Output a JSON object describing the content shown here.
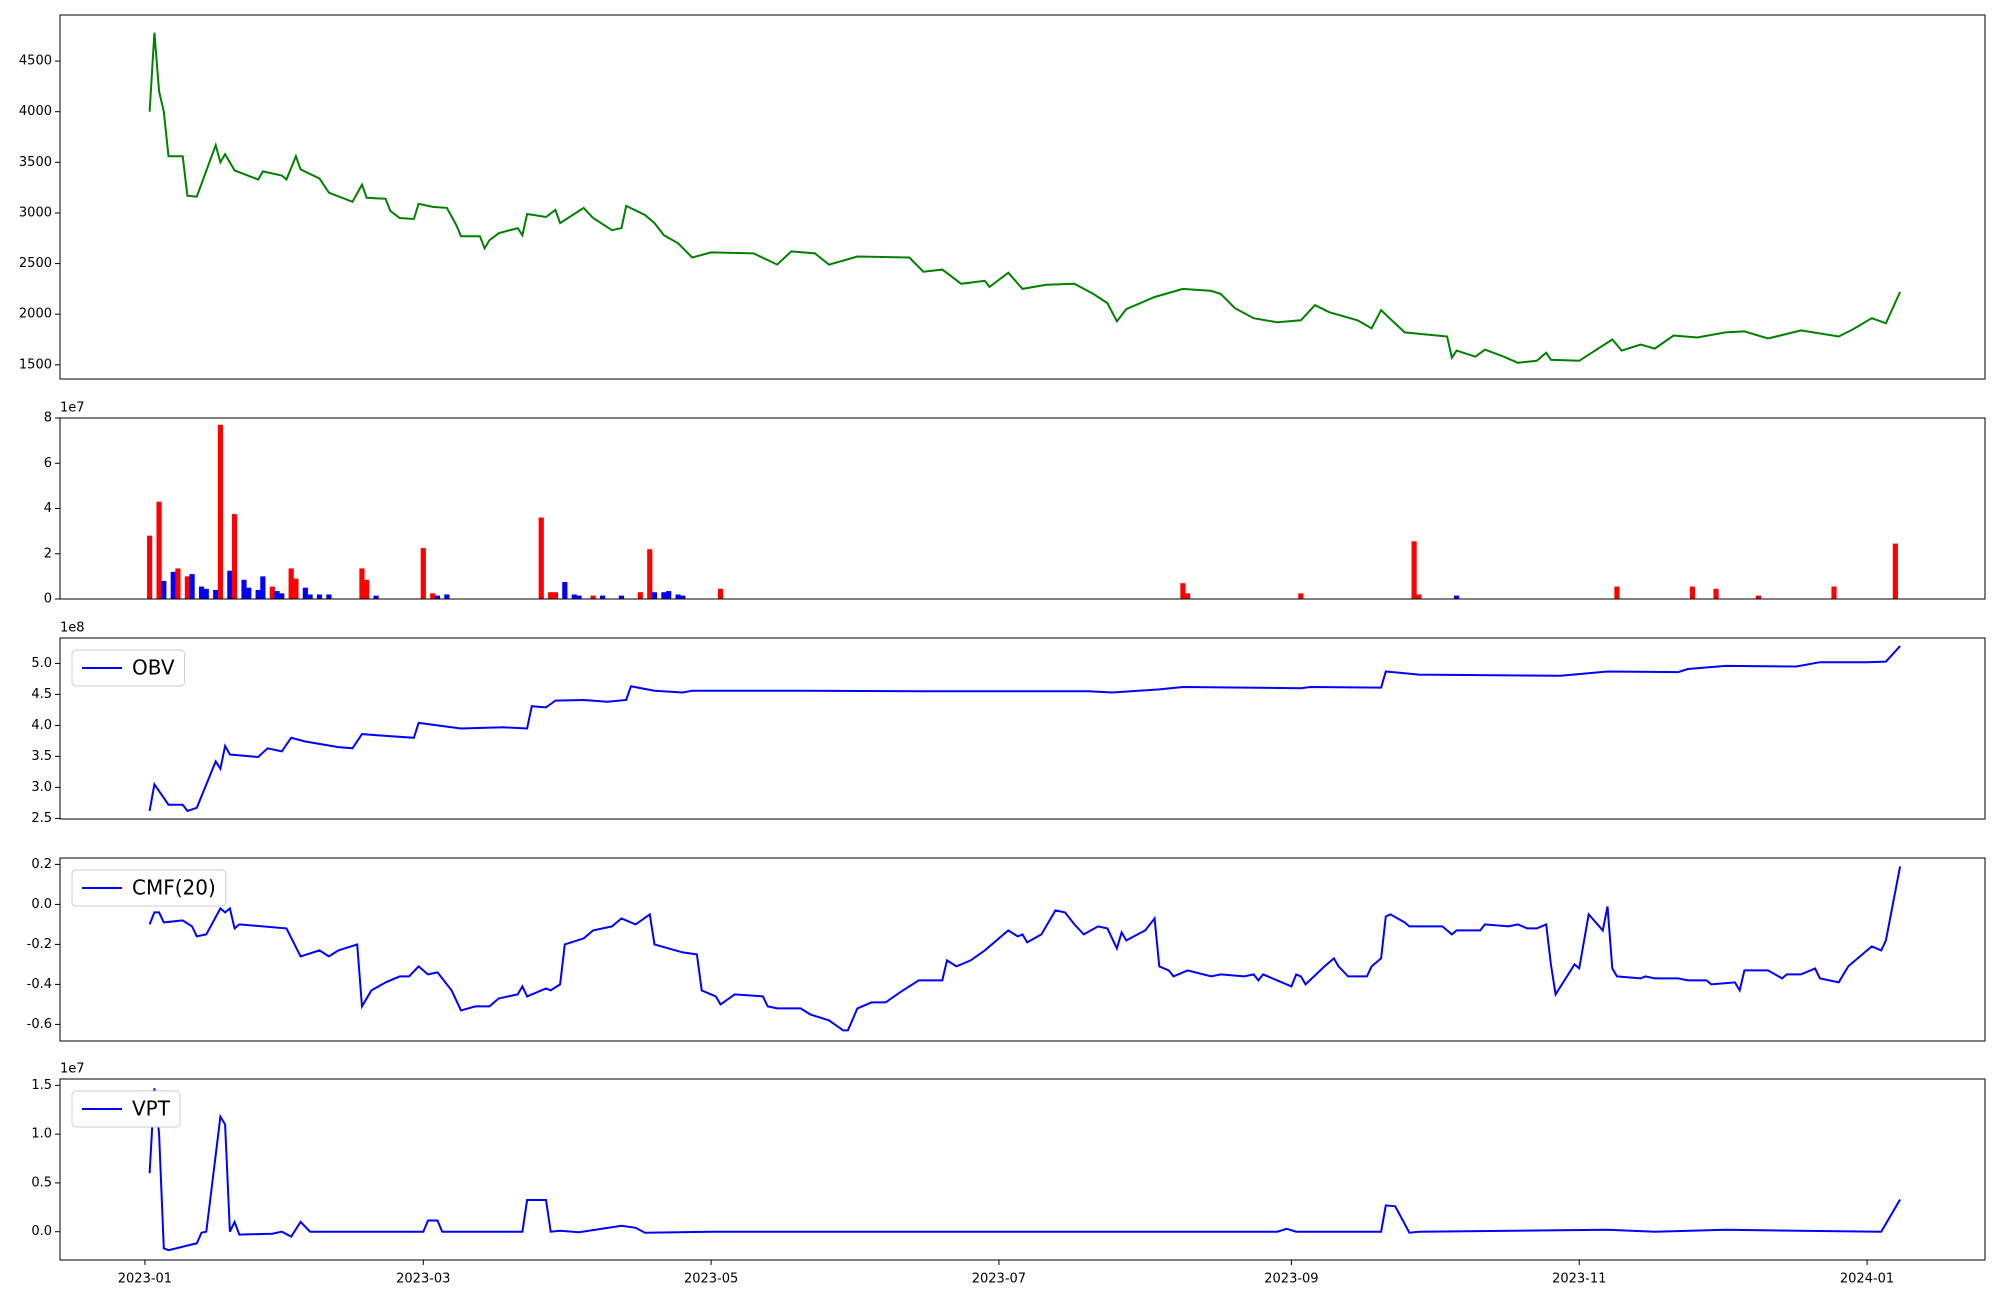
{
  "chart_data": [
    {
      "type": "line",
      "color": "#008000",
      "xlim": [
        -18,
        390
      ],
      "ylim": [
        1360,
        4955
      ],
      "yticks": [
        1500,
        2000,
        2500,
        3000,
        3500,
        4000,
        4500
      ],
      "x": [
        1,
        2,
        3,
        4,
        5,
        8,
        9,
        11,
        15,
        16,
        17,
        19,
        24,
        25,
        29,
        30,
        32,
        33,
        37,
        39,
        44,
        46,
        47,
        51,
        52,
        54,
        57,
        58,
        61,
        64,
        66,
        67,
        71,
        72,
        73,
        75,
        79,
        80,
        81,
        85,
        87,
        88,
        93,
        95,
        99,
        101,
        102,
        106,
        108,
        110,
        113,
        116,
        120,
        129,
        134,
        137,
        142,
        145,
        151,
        162,
        165,
        169,
        173,
        178,
        179,
        183,
        186,
        191,
        197,
        201,
        204,
        206,
        208,
        214,
        220,
        226,
        228,
        231,
        235,
        240,
        245,
        248,
        251,
        257,
        260,
        262,
        267,
        276,
        277,
        278,
        282,
        284,
        288,
        291,
        295,
        297,
        298,
        304,
        306,
        311,
        313,
        317,
        320,
        324,
        329,
        335,
        339,
        344,
        351,
        359,
        362,
        366,
        369,
        372
      ],
      "values": [
        4000,
        4780,
        4200,
        4000,
        3560,
        3560,
        3170,
        3160,
        3670,
        3500,
        3580,
        3420,
        3330,
        3410,
        3370,
        3330,
        3560,
        3430,
        3340,
        3200,
        3110,
        3280,
        3150,
        3140,
        3020,
        2950,
        2940,
        3090,
        3060,
        3050,
        2880,
        2770,
        2770,
        2650,
        2730,
        2800,
        2850,
        2780,
        2990,
        2960,
        3030,
        2900,
        3050,
        2950,
        2830,
        2850,
        3070,
        2980,
        2900,
        2780,
        2700,
        2560,
        2610,
        2600,
        2490,
        2620,
        2600,
        2490,
        2570,
        2560,
        2420,
        2440,
        2300,
        2330,
        2270,
        2410,
        2250,
        2290,
        2300,
        2200,
        2110,
        1930,
        2050,
        2170,
        2250,
        2230,
        2200,
        2060,
        1960,
        1920,
        1940,
        2090,
        2020,
        1940,
        1860,
        2040,
        1820,
        1780,
        1570,
        1640,
        1580,
        1650,
        1580,
        1520,
        1540,
        1620,
        1550,
        1540,
        1600,
        1750,
        1640,
        1700,
        1660,
        1790,
        1770,
        1820,
        1830,
        1760,
        1840,
        1780,
        1850,
        1960,
        1910,
        2220
      ]
    },
    {
      "type": "bar",
      "offset_label": "1e7",
      "xlim": [
        -18,
        390
      ],
      "ylim": [
        0,
        8
      ],
      "yticks": [
        0,
        2,
        4,
        6,
        8
      ],
      "x": [
        1,
        3,
        4,
        6,
        7,
        9,
        10,
        12,
        13,
        15,
        16,
        18,
        19,
        21,
        22,
        24,
        25,
        27,
        28,
        29,
        31,
        32,
        34,
        35,
        37,
        39,
        46,
        47,
        49,
        59,
        61,
        62,
        64,
        84,
        86,
        87,
        89,
        91,
        92,
        95,
        97,
        101,
        105,
        107,
        108,
        110,
        111,
        113,
        114,
        122,
        220,
        221,
        245,
        269,
        270,
        278,
        312,
        328,
        333,
        342,
        358,
        371
      ],
      "values": [
        2.8,
        4.3,
        0.8,
        1.2,
        1.35,
        1.0,
        1.1,
        0.55,
        0.45,
        0.4,
        7.7,
        1.25,
        3.75,
        0.85,
        0.5,
        0.4,
        1.0,
        0.55,
        0.35,
        0.25,
        1.35,
        0.9,
        0.5,
        0.2,
        0.2,
        0.2,
        1.35,
        0.85,
        0.15,
        2.25,
        0.25,
        0.15,
        0.2,
        3.6,
        0.3,
        0.3,
        0.75,
        0.2,
        0.15,
        0.15,
        0.15,
        0.15,
        0.3,
        2.2,
        0.3,
        0.3,
        0.35,
        0.2,
        0.15,
        0.45,
        0.7,
        0.25,
        0.25,
        2.55,
        0.2,
        0.15,
        0.55,
        0.55,
        0.45,
        0.15,
        0.55,
        2.45
      ],
      "colors": [
        "#ff0000",
        "#ff0000",
        "#0000ff",
        "#0000ff",
        "#ff0000",
        "#ff0000",
        "#0000ff",
        "#0000ff",
        "#0000ff",
        "#0000ff",
        "#ff0000",
        "#0000ff",
        "#ff0000",
        "#0000ff",
        "#0000ff",
        "#0000ff",
        "#0000ff",
        "#ff0000",
        "#0000ff",
        "#0000ff",
        "#ff0000",
        "#ff0000",
        "#0000ff",
        "#0000ff",
        "#0000ff",
        "#0000ff",
        "#ff0000",
        "#ff0000",
        "#0000ff",
        "#ff0000",
        "#ff0000",
        "#0000ff",
        "#0000ff",
        "#ff0000",
        "#ff0000",
        "#ff0000",
        "#0000ff",
        "#0000ff",
        "#0000ff",
        "#ff0000",
        "#0000ff",
        "#0000ff",
        "#ff0000",
        "#ff0000",
        "#0000ff",
        "#0000ff",
        "#0000ff",
        "#0000ff",
        "#0000ff",
        "#ff0000",
        "#ff0000",
        "#ff0000",
        "#ff0000",
        "#ff0000",
        "#ff0000",
        "#0000ff",
        "#ff0000",
        "#ff0000",
        "#ff0000",
        "#ff0000",
        "#ff0000",
        "#ff0000"
      ]
    },
    {
      "type": "line",
      "offset_label": "1e8",
      "legend": "upper left",
      "xlim": [
        -18,
        390
      ],
      "ylim": [
        2.49,
        5.41
      ],
      "yticks": [
        2.5,
        {
          "value": 3,
          "label": "3.0"
        },
        3.5,
        {
          "value": 4,
          "label": "4.0"
        },
        4.5,
        {
          "value": 5,
          "label": "5.0"
        }
      ],
      "x": [
        1,
        2,
        5,
        8,
        9,
        11,
        15,
        16,
        17,
        18,
        24,
        26,
        29,
        31,
        34,
        41,
        44,
        46,
        51,
        57,
        58,
        67,
        76,
        81,
        82,
        85,
        87,
        93,
        98,
        102,
        103,
        108,
        114,
        116,
        140,
        165,
        200,
        205,
        215,
        220,
        245,
        247,
        262,
        263,
        270,
        300,
        310,
        325,
        327,
        335,
        350,
        355,
        365,
        369,
        372
      ],
      "series": [
        {
          "name": "OBV",
          "color": "#0000ff",
          "values": [
            2.62,
            3.05,
            2.72,
            2.72,
            2.62,
            2.67,
            3.42,
            3.3,
            3.67,
            3.53,
            3.49,
            3.63,
            3.58,
            3.8,
            3.74,
            3.65,
            3.63,
            3.86,
            3.83,
            3.8,
            4.04,
            3.95,
            3.97,
            3.95,
            4.31,
            4.29,
            4.4,
            4.41,
            4.38,
            4.41,
            4.63,
            4.56,
            4.53,
            4.56,
            4.56,
            4.55,
            4.55,
            4.53,
            4.58,
            4.62,
            4.6,
            4.62,
            4.61,
            4.87,
            4.82,
            4.8,
            4.87,
            4.86,
            4.91,
            4.96,
            4.95,
            5.02,
            5.02,
            5.03,
            5.28
          ]
        }
      ]
    },
    {
      "type": "line",
      "legend": "upper left",
      "xlim": [
        -18,
        390
      ],
      "ylim": [
        -0.683,
        0.232
      ],
      "yticks": [
        -0.6,
        -0.4,
        -0.2,
        {
          "value": 0,
          "label": "0.0"
        },
        0.2
      ],
      "x": [
        1,
        2,
        3,
        4,
        8,
        10,
        11,
        13,
        16,
        17,
        18,
        19,
        20,
        30,
        33,
        37,
        39,
        41,
        45,
        46,
        48,
        51,
        54,
        56,
        58,
        60,
        62,
        65,
        67,
        70,
        73,
        75,
        79,
        80,
        81,
        85,
        86,
        88,
        89,
        93,
        95,
        99,
        101,
        104,
        107,
        108,
        114,
        117,
        118,
        121,
        122,
        125,
        131,
        132,
        134,
        139,
        141,
        145,
        148,
        149,
        151,
        154,
        157,
        160,
        164,
        169,
        170,
        172,
        175,
        178,
        183,
        185,
        186,
        187,
        190,
        193,
        195,
        197,
        199,
        202,
        204,
        206,
        207,
        208,
        212,
        214,
        215,
        217,
        218,
        221,
        226,
        228,
        233,
        235,
        236,
        237,
        240,
        241,
        243,
        244,
        245,
        246,
        250,
        252,
        253,
        255,
        259,
        260,
        262,
        263,
        264,
        267,
        268,
        275,
        277,
        278,
        283,
        284,
        289,
        291,
        293,
        295,
        297,
        298,
        299,
        303,
        304,
        306,
        309,
        310,
        311,
        312,
        317,
        318,
        320,
        325,
        327,
        331,
        332,
        337,
        338,
        339,
        344,
        347,
        348,
        351,
        354,
        355,
        359,
        361,
        366,
        368,
        369,
        372
      ],
      "series": [
        {
          "name": "CMF(20)",
          "color": "#0000ff",
          "values": [
            -0.1,
            -0.04,
            -0.04,
            -0.09,
            -0.08,
            -0.11,
            -0.16,
            -0.15,
            -0.02,
            -0.04,
            -0.02,
            -0.12,
            -0.1,
            -0.12,
            -0.26,
            -0.23,
            -0.26,
            -0.23,
            -0.2,
            -0.51,
            -0.43,
            -0.39,
            -0.36,
            -0.36,
            -0.31,
            -0.35,
            -0.34,
            -0.43,
            -0.53,
            -0.51,
            -0.51,
            -0.47,
            -0.45,
            -0.41,
            -0.46,
            -0.42,
            -0.43,
            -0.4,
            -0.2,
            -0.17,
            -0.13,
            -0.11,
            -0.07,
            -0.1,
            -0.05,
            -0.2,
            -0.24,
            -0.25,
            -0.43,
            -0.46,
            -0.5,
            -0.45,
            -0.46,
            -0.51,
            -0.52,
            -0.52,
            -0.55,
            -0.58,
            -0.63,
            -0.63,
            -0.52,
            -0.49,
            -0.49,
            -0.44,
            -0.38,
            -0.38,
            -0.28,
            -0.31,
            -0.28,
            -0.23,
            -0.13,
            -0.16,
            -0.15,
            -0.19,
            -0.15,
            -0.03,
            -0.04,
            -0.1,
            -0.15,
            -0.11,
            -0.12,
            -0.22,
            -0.14,
            -0.18,
            -0.13,
            -0.07,
            -0.31,
            -0.33,
            -0.36,
            -0.33,
            -0.36,
            -0.35,
            -0.36,
            -0.35,
            -0.38,
            -0.35,
            -0.38,
            -0.39,
            -0.41,
            -0.35,
            -0.36,
            -0.4,
            -0.31,
            -0.27,
            -0.31,
            -0.36,
            -0.36,
            -0.31,
            -0.27,
            -0.06,
            -0.05,
            -0.09,
            -0.11,
            -0.11,
            -0.15,
            -0.13,
            -0.13,
            -0.1,
            -0.11,
            -0.1,
            -0.12,
            -0.12,
            -0.1,
            -0.3,
            -0.45,
            -0.3,
            -0.32,
            -0.05,
            -0.13,
            -0.01,
            -0.32,
            -0.36,
            -0.37,
            -0.36,
            -0.37,
            -0.37,
            -0.38,
            -0.38,
            -0.4,
            -0.39,
            -0.43,
            -0.33,
            -0.33,
            -0.37,
            -0.35,
            -0.35,
            -0.32,
            -0.37,
            -0.39,
            -0.31,
            -0.21,
            -0.23,
            -0.18,
            0.19
          ]
        }
      ]
    },
    {
      "type": "line",
      "offset_label": "1e7",
      "legend": "upper left",
      "xlim": [
        -18,
        390
      ],
      "ylim": [
        -0.29,
        1.565
      ],
      "yticks": [
        {
          "value": 0,
          "label": "0.0"
        },
        0.5,
        {
          "value": 1,
          "label": "1.0"
        },
        1.5
      ],
      "xticks": [
        {
          "value": 0,
          "label": "2023-01"
        },
        {
          "value": 59,
          "label": "2023-03"
        },
        {
          "value": 120,
          "label": "2023-05"
        },
        {
          "value": 181,
          "label": "2023-07"
        },
        {
          "value": 243,
          "label": "2023-09"
        },
        {
          "value": 304,
          "label": "2023-11"
        },
        {
          "value": 365,
          "label": "2024-01"
        }
      ],
      "x": [
        1,
        2,
        3,
        4,
        5,
        10,
        11,
        12,
        13,
        16,
        17,
        18,
        19,
        20,
        27,
        29,
        31,
        33,
        35,
        59,
        60,
        62,
        63,
        80,
        81,
        85,
        86,
        88,
        92,
        101,
        104,
        106,
        120,
        240,
        242,
        244,
        262,
        263,
        265,
        268,
        270,
        310,
        320,
        335,
        368,
        372
      ],
      "series": [
        {
          "name": "VPT",
          "color": "#0000ff",
          "values": [
            0.6,
            1.47,
            1.0,
            -0.17,
            -0.19,
            -0.13,
            -0.12,
            -0.01,
            0.0,
            1.18,
            1.1,
            0.0,
            0.1,
            -0.03,
            -0.02,
            0.0,
            -0.05,
            0.1,
            0.0,
            0.0,
            0.115,
            0.115,
            0.0,
            0.0,
            0.325,
            0.325,
            0.0,
            0.01,
            -0.005,
            0.06,
            0.04,
            -0.01,
            0.0,
            0.0,
            0.03,
            0.0,
            0.0,
            0.27,
            0.26,
            -0.01,
            0.0,
            0.02,
            0.0,
            0.02,
            0.0,
            0.33
          ]
        }
      ]
    }
  ]
}
